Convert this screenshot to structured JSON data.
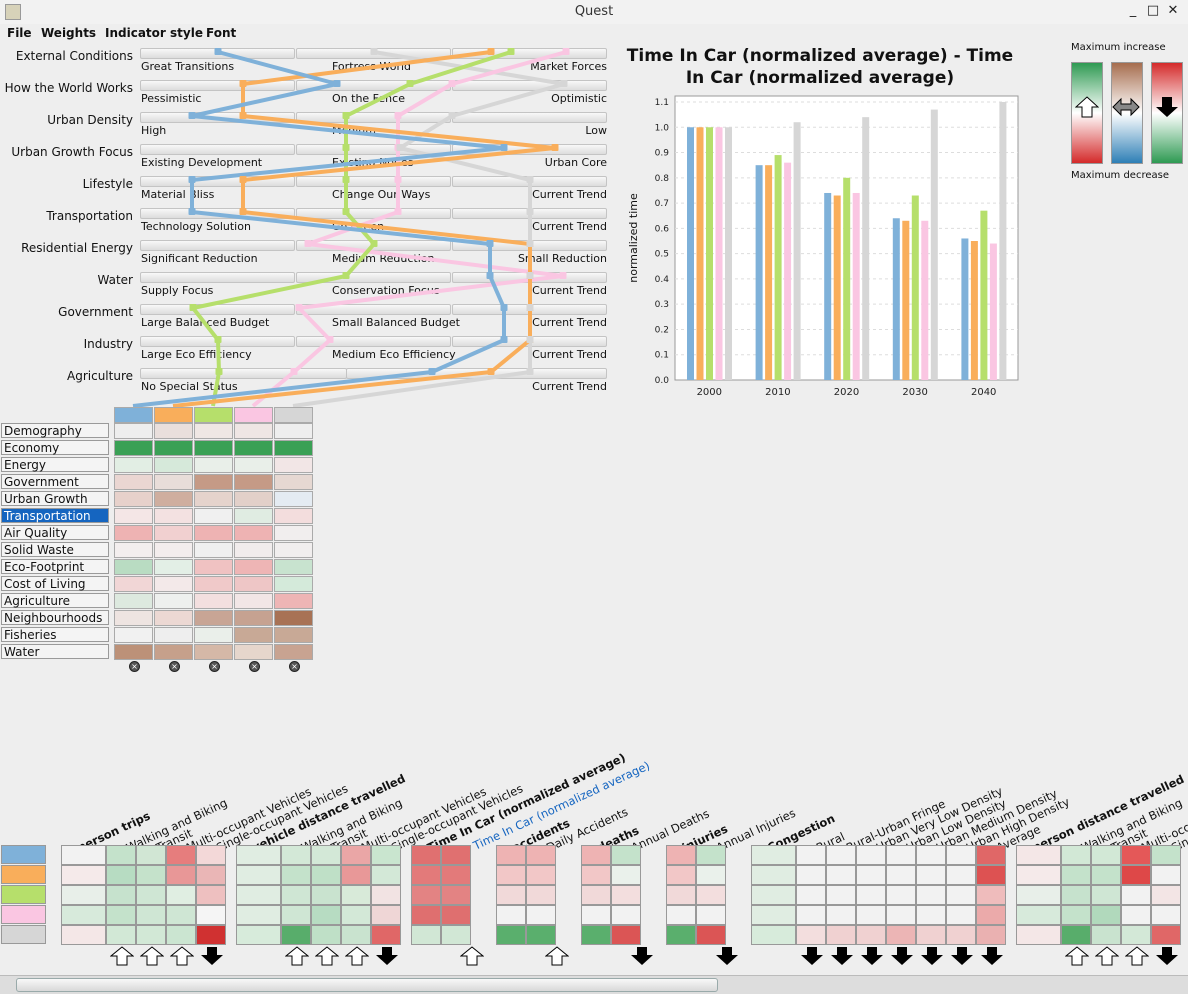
{
  "window": {
    "title": "Quest",
    "minimize": "_",
    "maximize": "□",
    "close": "✕"
  },
  "menu": [
    "File",
    "Weights",
    "Indicator style",
    "Font"
  ],
  "series_colors": [
    "#7fb1d9",
    "#f9ae5b",
    "#b6df6b",
    "#fac6e2",
    "#d6d6d6"
  ],
  "drivers": [
    {
      "name": "External Conditions",
      "options": [
        "Great Transitions",
        "Fortress World",
        "Market Forces"
      ]
    },
    {
      "name": "How the World Works",
      "options": [
        "Pessimistic",
        "On the Fence",
        "Optimistic"
      ]
    },
    {
      "name": "Urban Density",
      "options": [
        "High",
        "Medium",
        "Low"
      ]
    },
    {
      "name": "Urban Growth Focus",
      "options": [
        "Existing Development",
        "Existing Nodes",
        "Urban Core"
      ]
    },
    {
      "name": "Lifestyle",
      "options": [
        "Material Bliss",
        "Change Our Ways",
        "Current Trend"
      ]
    },
    {
      "name": "Transportation",
      "options": [
        "Technology Solution",
        "Go Green",
        "Current Trend"
      ]
    },
    {
      "name": "Residential Energy",
      "options": [
        "Significant Reduction",
        "Medium Reduction",
        "Small Reduction"
      ]
    },
    {
      "name": "Water",
      "options": [
        "Supply Focus",
        "Conservation Focus",
        "Current Trend"
      ]
    },
    {
      "name": "Government",
      "options": [
        "Large Balanced Budget",
        "Small Balanced Budget",
        "Current Trend"
      ]
    },
    {
      "name": "Industry",
      "options": [
        "Large Eco Efficiency",
        "Medium Eco Efficiency",
        "Current Trend"
      ]
    },
    {
      "name": "Agriculture",
      "options": [
        "No Special Status",
        "",
        "Current Trend"
      ]
    }
  ],
  "categories": [
    "Demography",
    "Economy",
    "Energy",
    "Government",
    "Urban Growth",
    "Transportation",
    "Air Quality",
    "Solid Waste",
    "Eco-Footprint",
    "Cost of Living",
    "Agriculture",
    "Neighbourhoods",
    "Fisheries",
    "Water"
  ],
  "selected_category": "Transportation",
  "heatmap": [
    [
      "#eeeeee",
      "#e9dfdc",
      "#efe7e4",
      "#efe6e4",
      "#eeeeee"
    ],
    [
      "#3aa055",
      "#3aa055",
      "#3aa055",
      "#3aa055",
      "#3aa055"
    ],
    [
      "#e2eee4",
      "#d6e9da",
      "#e9efe9",
      "#e9efe9",
      "#f2e6e6"
    ],
    [
      "#ead6d2",
      "#e8ddd9",
      "#c59a86",
      "#c59a86",
      "#e6d8d2"
    ],
    [
      "#e7d1cb",
      "#cfae9f",
      "#e5d3cc",
      "#e2d0c9",
      "#e4ebf2"
    ],
    [
      "#f4e6e6",
      "#f3e1e1",
      "#f0f0f0",
      "#e0ece2",
      "#f3dddd"
    ],
    [
      "#eeb3b3",
      "#f1d0d0",
      "#eeb3b3",
      "#eeb3b3",
      "#f1eeee"
    ],
    [
      "#f3eeee",
      "#f3eded",
      "#f0f0f0",
      "#f1ecec",
      "#f1eeee"
    ],
    [
      "#b9dcc2",
      "#e3efe6",
      "#f0c2c2",
      "#eeb5b5",
      "#c8e3cf"
    ],
    [
      "#f1d6d6",
      "#f3e9e9",
      "#f0c9c9",
      "#eec6c6",
      "#d4eada"
    ],
    [
      "#dde9df",
      "#eef0ee",
      "#f3dfdf",
      "#f2e6e6",
      "#eeb5b5"
    ],
    [
      "#eee4e1",
      "#ecd8d3",
      "#c8a595",
      "#c6a291",
      "#a87255"
    ],
    [
      "#f1f1f1",
      "#eeeeee",
      "#eaefea",
      "#c8a996",
      "#c8a996"
    ],
    [
      "#bc9178",
      "#c6a08b",
      "#d5b8a7",
      "#e6d6cc",
      "#c8a391"
    ]
  ],
  "chart_data": {
    "type": "bar",
    "title": "Time In Car (normalized average) - Time In Car (normalized average)",
    "ylabel": "normalized time",
    "xlabel": "",
    "categories": [
      "2000",
      "2010",
      "2020",
      "2030",
      "2040"
    ],
    "ylim": [
      0,
      1.1
    ],
    "yticks": [
      "0.0",
      "0.1",
      "0.2",
      "0.3",
      "0.4",
      "0.5",
      "0.6",
      "0.7",
      "0.8",
      "0.9",
      "1.0",
      "1.1"
    ],
    "series": [
      {
        "color": "#7fb1d9",
        "values": [
          1.0,
          0.85,
          0.74,
          0.64,
          0.56
        ]
      },
      {
        "color": "#f9ae5b",
        "values": [
          1.0,
          0.85,
          0.73,
          0.63,
          0.55
        ]
      },
      {
        "color": "#b6df6b",
        "values": [
          1.0,
          0.89,
          0.8,
          0.73,
          0.67
        ]
      },
      {
        "color": "#fac6e2",
        "values": [
          1.0,
          0.86,
          0.74,
          0.63,
          0.54
        ]
      },
      {
        "color": "#d6d6d6",
        "values": [
          1.0,
          1.02,
          1.04,
          1.07,
          1.1
        ]
      }
    ],
    "grid": true
  },
  "legend": {
    "top": "Maximum increase",
    "bottom": "Maximum decrease"
  },
  "indicator_groups": [
    {
      "name": "person trips",
      "sub": [
        "Walking and Biking",
        "Transit",
        "Multi-occupant Vehicles",
        "Single-occupant Vehicles"
      ]
    },
    {
      "name": "vehicle distance travelled",
      "sub": [
        "Walking and Biking",
        "Transit",
        "Multi-occupant Vehicles",
        "Single-occupant Vehicles"
      ]
    },
    {
      "name": "Time In Car (normalized average)",
      "sub": [
        "Time In Car (normalized average)"
      ]
    },
    {
      "name": "accidents",
      "sub": [
        "Daily Accidents"
      ]
    },
    {
      "name": "deaths",
      "sub": [
        "Annual Deaths"
      ]
    },
    {
      "name": "injuries",
      "sub": [
        "Annual Injuries"
      ]
    },
    {
      "name": "Congestion",
      "sub": [
        "Rural",
        "Rural-Urban Fringe",
        "Urban Very Low Density",
        "Urban Low Density",
        "Urban Medium Density",
        "Urban High Density",
        "Average"
      ]
    },
    {
      "name": "person distance travelled",
      "sub": [
        "Walking and Biking",
        "Transit",
        "Multi-occupant Vehicles",
        "Single-occupant Vehicles"
      ]
    }
  ]
}
